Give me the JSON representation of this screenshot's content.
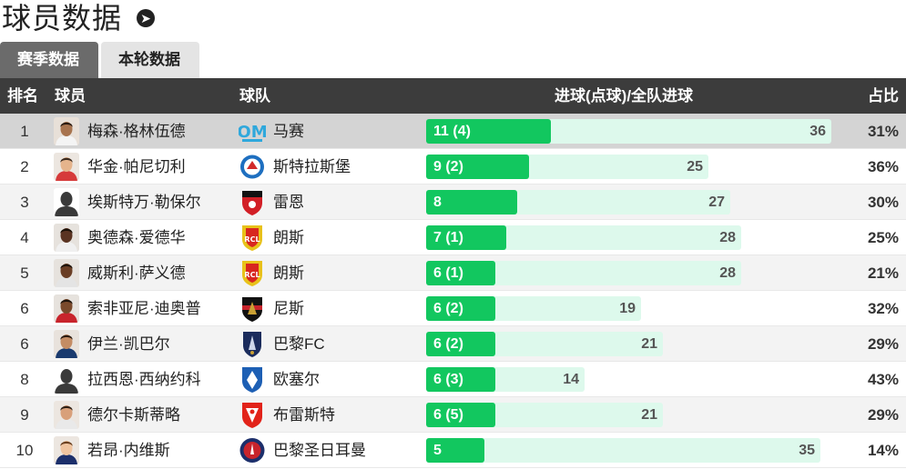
{
  "page": {
    "title": "球员数据"
  },
  "tabs": [
    {
      "label": "赛季数据",
      "active": true
    },
    {
      "label": "本轮数据",
      "active": false
    }
  ],
  "table": {
    "headers": {
      "rank": "排名",
      "player": "球员",
      "team": "球队",
      "goals": "进球(点球)/全队进球",
      "ratio": "占比"
    },
    "rows": [
      {
        "rank": "1",
        "player": "梅森·格林伍德",
        "team": "马赛",
        "goals": "11 (4)",
        "team_goals": "36",
        "ratio": "31%"
      },
      {
        "rank": "2",
        "player": "华金·帕尼切利",
        "team": "斯特拉斯堡",
        "goals": "9 (2)",
        "team_goals": "25",
        "ratio": "36%"
      },
      {
        "rank": "3",
        "player": "埃斯特万·勒保尔",
        "team": "雷恩",
        "goals": "8",
        "team_goals": "27",
        "ratio": "30%"
      },
      {
        "rank": "4",
        "player": "奥德森·爱德华",
        "team": "朗斯",
        "goals": "7 (1)",
        "team_goals": "28",
        "ratio": "25%"
      },
      {
        "rank": "5",
        "player": "威斯利·萨义德",
        "team": "朗斯",
        "goals": "6 (1)",
        "team_goals": "28",
        "ratio": "21%"
      },
      {
        "rank": "6",
        "player": "索非亚尼·迪奥普",
        "team": "尼斯",
        "goals": "6 (2)",
        "team_goals": "19",
        "ratio": "32%"
      },
      {
        "rank": "6",
        "player": "伊兰·凯巴尔",
        "team": "巴黎FC",
        "goals": "6 (2)",
        "team_goals": "21",
        "ratio": "29%"
      },
      {
        "rank": "8",
        "player": "拉西恩·西纳约科",
        "team": "欧塞尔",
        "goals": "6 (3)",
        "team_goals": "14",
        "ratio": "43%"
      },
      {
        "rank": "9",
        "player": "德尔卡斯蒂略",
        "team": "布雷斯特",
        "goals": "6 (5)",
        "team_goals": "21",
        "ratio": "29%"
      },
      {
        "rank": "10",
        "player": "若昂·内维斯",
        "team": "巴黎圣日耳曼",
        "goals": "5",
        "team_goals": "35",
        "ratio": "14%"
      }
    ]
  },
  "colors": {
    "bar_fill": "#12c75f",
    "bar_track": "#ddf9ec",
    "header_bg": "#3c3c3c",
    "tab_active_bg": "#6b6b6b"
  },
  "icons": {
    "title": "arrow-right-circle-icon",
    "players": [
      "player-photo-icon",
      "player-photo-icon",
      "player-silhouette-icon",
      "player-photo-icon",
      "player-photo-icon",
      "player-photo-icon",
      "player-photo-icon",
      "player-silhouette-icon",
      "player-photo-icon",
      "player-photo-icon"
    ],
    "teams": [
      "marseille-crest-icon",
      "strasbourg-crest-icon",
      "rennes-crest-icon",
      "lens-crest-icon",
      "lens-crest-icon",
      "nice-crest-icon",
      "paris-fc-crest-icon",
      "auxerre-crest-icon",
      "brest-crest-icon",
      "psg-crest-icon"
    ]
  }
}
